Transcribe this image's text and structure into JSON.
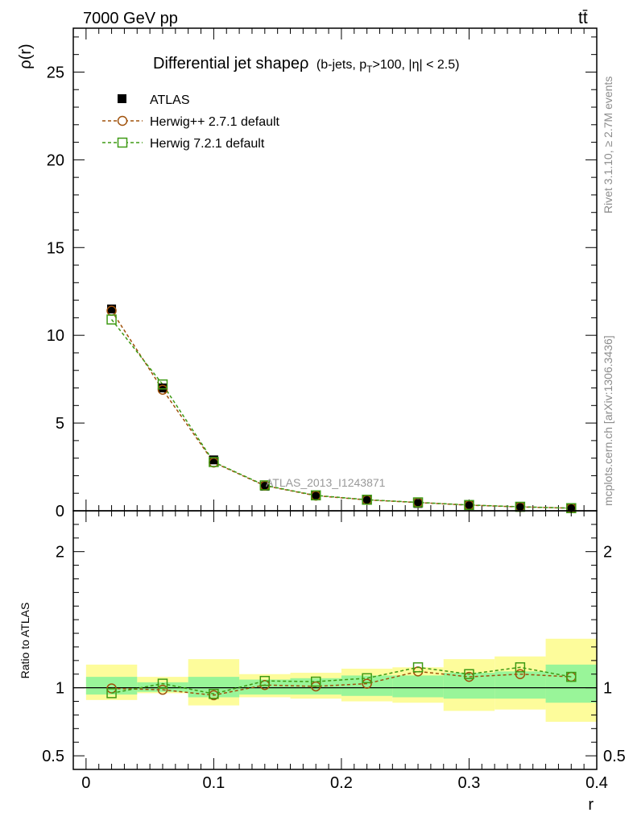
{
  "header": {
    "left": "7000 GeV pp",
    "right": "tt̄"
  },
  "side": {
    "rivet": "Rivet 3.1.10, ≥ 2.7M events",
    "mcplots": "mcplots.cern.ch [arXiv:1306.3436]"
  },
  "chart_data": {
    "type": "line",
    "title_main": "Differential jet shapeρ",
    "title_sub": "(b-jets, p",
    "title_sub_T": "T",
    "title_sub_rest": ">100, |η| < 2.5)",
    "watermark": "ATLAS_2013_I1243871",
    "ylabel": "ρ(r)",
    "ratio_ylabel": "Ratio to ATLAS",
    "xlabel": "r",
    "xlim": [
      -0.01,
      0.4
    ],
    "ylim": [
      0,
      27.5
    ],
    "ratio_ylim": [
      0.4,
      2.3
    ],
    "xticks": [
      0,
      0.1,
      0.2,
      0.3,
      0.4
    ],
    "xtick_labels": [
      "0",
      "0.1",
      "0.2",
      "0.3",
      "0.4"
    ],
    "yticks": [
      0,
      5,
      10,
      15,
      20,
      25
    ],
    "ytick_labels": [
      "0",
      "5",
      "10",
      "15",
      "20",
      "25"
    ],
    "ratio_yticks": [
      0.5,
      1,
      2
    ],
    "ratio_ytick_labels": [
      "0.5",
      "1",
      "2"
    ],
    "x": [
      0.02,
      0.06,
      0.1,
      0.14,
      0.18,
      0.22,
      0.26,
      0.3,
      0.34,
      0.38
    ],
    "bin_edges": [
      0,
      0.04,
      0.08,
      0.12,
      0.16,
      0.2,
      0.24,
      0.28,
      0.32,
      0.36,
      0.4
    ],
    "series": [
      {
        "name": "ATLAS",
        "color": "#000000",
        "marker": "filled-square",
        "values": [
          11.5,
          7.0,
          2.9,
          1.4,
          0.85,
          0.6,
          0.42,
          0.3,
          0.2,
          0.14
        ]
      },
      {
        "name": "Herwig++ 2.7.1 default",
        "color": "#a0520c",
        "marker": "open-circle",
        "values": [
          11.4,
          6.9,
          2.75,
          1.43,
          0.86,
          0.62,
          0.47,
          0.32,
          0.22,
          0.15
        ]
      },
      {
        "name": "Herwig 7.2.1 default",
        "color": "#3e9a14",
        "marker": "open-square",
        "values": [
          10.9,
          7.2,
          2.78,
          1.45,
          0.88,
          0.63,
          0.48,
          0.33,
          0.23,
          0.15
        ]
      }
    ],
    "ratio_series": [
      {
        "name": "Herwig++ 2.7.1 default",
        "values": [
          0.995,
          0.985,
          0.945,
          1.02,
          1.01,
          1.03,
          1.12,
          1.08,
          1.1,
          1.08
        ]
      },
      {
        "name": "Herwig 7.2.1 default",
        "values": [
          0.96,
          1.03,
          0.955,
          1.05,
          1.045,
          1.07,
          1.15,
          1.1,
          1.15,
          1.08
        ]
      }
    ],
    "band_inner": [
      [
        0.95,
        1.08
      ],
      [
        0.97,
        1.04
      ],
      [
        0.93,
        1.08
      ],
      [
        0.95,
        1.06
      ],
      [
        0.95,
        1.07
      ],
      [
        0.94,
        1.09
      ],
      [
        0.93,
        1.09
      ],
      [
        0.92,
        1.11
      ],
      [
        0.92,
        1.12
      ],
      [
        0.89,
        1.17
      ]
    ],
    "band_outer": [
      [
        0.91,
        1.17
      ],
      [
        0.96,
        1.08
      ],
      [
        0.87,
        1.21
      ],
      [
        0.93,
        1.1
      ],
      [
        0.92,
        1.11
      ],
      [
        0.9,
        1.14
      ],
      [
        0.89,
        1.15
      ],
      [
        0.83,
        1.21
      ],
      [
        0.84,
        1.23
      ],
      [
        0.75,
        1.36
      ]
    ],
    "band_colors": {
      "inner": "#99f599",
      "outer": "#fdfc9b"
    },
    "legend_position": "top-left"
  }
}
